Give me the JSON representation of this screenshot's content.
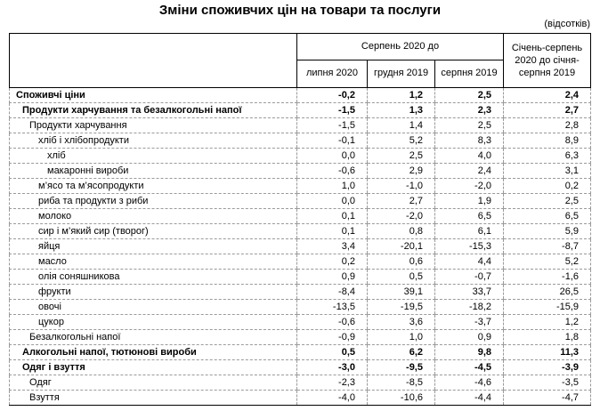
{
  "title": "Зміни споживчих цін на товари та послуги",
  "unit_note": "(відсотків)",
  "table": {
    "group_header": "Серпень 2020 до",
    "sub_headers": [
      "липня 2020",
      "грудня 2019",
      "серпня 2019"
    ],
    "cumulative_header": "Січень-серпень 2020 до січня-серпня 2019",
    "rows": [
      {
        "label": "Споживчі ціни",
        "indent": 0,
        "bold": true,
        "values": [
          "-0,2",
          "1,2",
          "2,5",
          "2,4"
        ]
      },
      {
        "label": "Продукти харчування та безалкогольні напої",
        "indent": 1,
        "bold": true,
        "values": [
          "-1,5",
          "1,3",
          "2,3",
          "2,7"
        ]
      },
      {
        "label": "Продукти харчування",
        "indent": 2,
        "bold": false,
        "values": [
          "-1,5",
          "1,4",
          "2,5",
          "2,8"
        ]
      },
      {
        "label": "хліб і хлібопродукти",
        "indent": 3,
        "bold": false,
        "values": [
          "-0,1",
          "5,2",
          "8,3",
          "8,9"
        ]
      },
      {
        "label": "хліб",
        "indent": 4,
        "bold": false,
        "values": [
          "0,0",
          "2,5",
          "4,0",
          "6,3"
        ]
      },
      {
        "label": "макаронні вироби",
        "indent": 4,
        "bold": false,
        "values": [
          "-0,6",
          "2,9",
          "2,4",
          "3,1"
        ]
      },
      {
        "label": "м’ясо та м’ясопродукти",
        "indent": 3,
        "bold": false,
        "values": [
          "1,0",
          "-1,0",
          "-2,0",
          "0,2"
        ]
      },
      {
        "label": "риба та продукти з риби",
        "indent": 3,
        "bold": false,
        "values": [
          "0,0",
          "2,7",
          "1,9",
          "2,5"
        ]
      },
      {
        "label": "молоко",
        "indent": 3,
        "bold": false,
        "values": [
          "0,1",
          "-2,0",
          "6,5",
          "6,5"
        ]
      },
      {
        "label": "сир і м’який сир (творог)",
        "indent": 3,
        "bold": false,
        "values": [
          "0,1",
          "0,8",
          "6,1",
          "5,9"
        ]
      },
      {
        "label": "яйця",
        "indent": 3,
        "bold": false,
        "values": [
          "3,4",
          "-20,1",
          "-15,3",
          "-8,7"
        ]
      },
      {
        "label": "масло",
        "indent": 3,
        "bold": false,
        "values": [
          "0,2",
          "0,6",
          "4,4",
          "5,2"
        ]
      },
      {
        "label": "олія соняшникова",
        "indent": 3,
        "bold": false,
        "values": [
          "0,9",
          "0,5",
          "-0,7",
          "-1,6"
        ]
      },
      {
        "label": "фрукти",
        "indent": 3,
        "bold": false,
        "values": [
          "-8,4",
          "39,1",
          "33,7",
          "26,5"
        ]
      },
      {
        "label": "овочі",
        "indent": 3,
        "bold": false,
        "values": [
          "-13,5",
          "-19,5",
          "-18,2",
          "-15,9"
        ]
      },
      {
        "label": "цукор",
        "indent": 3,
        "bold": false,
        "values": [
          "-0,6",
          "3,6",
          "-3,7",
          "1,2"
        ]
      },
      {
        "label": "Безалкогольні напої",
        "indent": 2,
        "bold": false,
        "values": [
          "-0,9",
          "1,0",
          "0,9",
          "1,8"
        ]
      },
      {
        "label": "Алкогольні напої, тютюнові вироби",
        "indent": 1,
        "bold": true,
        "values": [
          "0,5",
          "6,2",
          "9,8",
          "11,3"
        ]
      },
      {
        "label": "Одяг і взуття",
        "indent": 1,
        "bold": true,
        "values": [
          "-3,0",
          "-9,5",
          "-4,5",
          "-3,9"
        ]
      },
      {
        "label": "Одяг",
        "indent": 2,
        "bold": false,
        "values": [
          "-2,3",
          "-8,5",
          "-4,6",
          "-3,5"
        ]
      },
      {
        "label": "Взуття",
        "indent": 2,
        "bold": false,
        "values": [
          "-4,0",
          "-10,6",
          "-4,4",
          "-4,7"
        ]
      }
    ]
  }
}
